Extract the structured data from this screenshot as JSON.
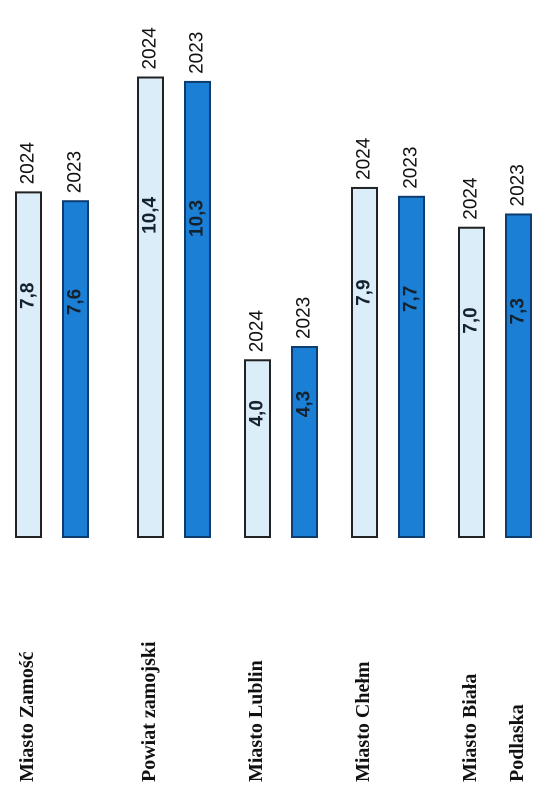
{
  "chart_data": {
    "type": "bar",
    "orientation": "rotated",
    "categories": [
      "Miasto Zamość",
      "Powiat zamojski",
      "Miasto Lublin",
      "Miasto Chełm",
      "Miasto Biała Podlaska"
    ],
    "series": [
      {
        "name": "2024",
        "color": "#dcedfa",
        "values": [
          7.8,
          10.4,
          4.0,
          7.9,
          7.0
        ],
        "value_labels": [
          "7,8",
          "10,4",
          "4,0",
          "7,9",
          "7,0"
        ]
      },
      {
        "name": "2023",
        "color": "#1b7fd6",
        "values": [
          7.6,
          10.3,
          4.3,
          7.7,
          7.3
        ],
        "value_labels": [
          "7,6",
          "10,3",
          "4,3",
          "7,7",
          "7,3"
        ]
      }
    ],
    "ylim": [
      0,
      11
    ]
  }
}
